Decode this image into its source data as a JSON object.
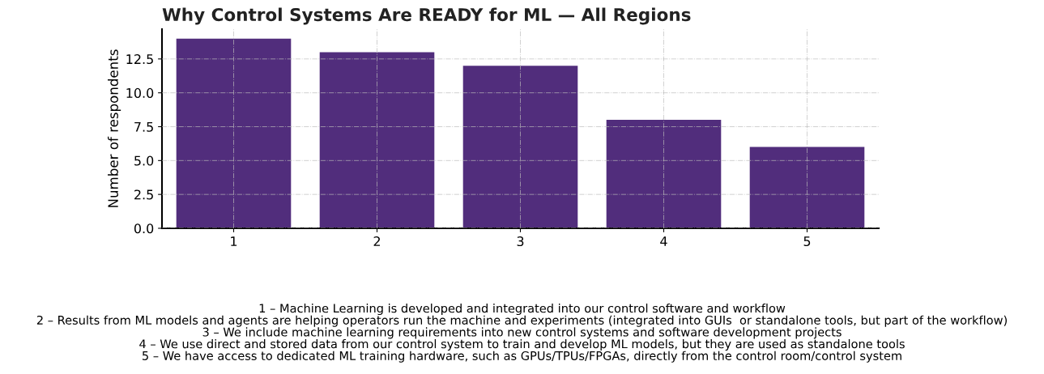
{
  "chart_data": {
    "type": "bar",
    "title": "Why Control Systems Are READY for ML — All Regions",
    "ylabel": "Number of respondents",
    "categories": [
      "1",
      "2",
      "3",
      "4",
      "5"
    ],
    "values": [
      14,
      13,
      12,
      8,
      6
    ],
    "color": "#512d7c",
    "ylim": [
      0,
      14.7
    ],
    "yticks": [
      {
        "value": 0,
        "label": "0.0"
      },
      {
        "value": 2.5,
        "label": "2.5"
      },
      {
        "value": 5,
        "label": "5.0"
      },
      {
        "value": 7.5,
        "label": "7.5"
      },
      {
        "value": 10,
        "label": "10.0"
      },
      {
        "value": 12.5,
        "label": "12.5"
      }
    ],
    "grid": true,
    "annotations": [
      "1 – Machine Learning is developed and integrated into our control software and workflow\n2 – Results from ML models and agents are helping operators run the machine and experiments (integrated into GUIs  or standalone tools, but part of the workflow)\n3 – We include machine learning requirements into new control systems and software development projects\n4 – We use direct and stored data from our control system to train and develop ML models, but they are used as standalone tools\n5 – We have access to dedicated ML training hardware, such as GPUs/TPUs/FPGAs, directly from the control room/control system"
    ]
  }
}
